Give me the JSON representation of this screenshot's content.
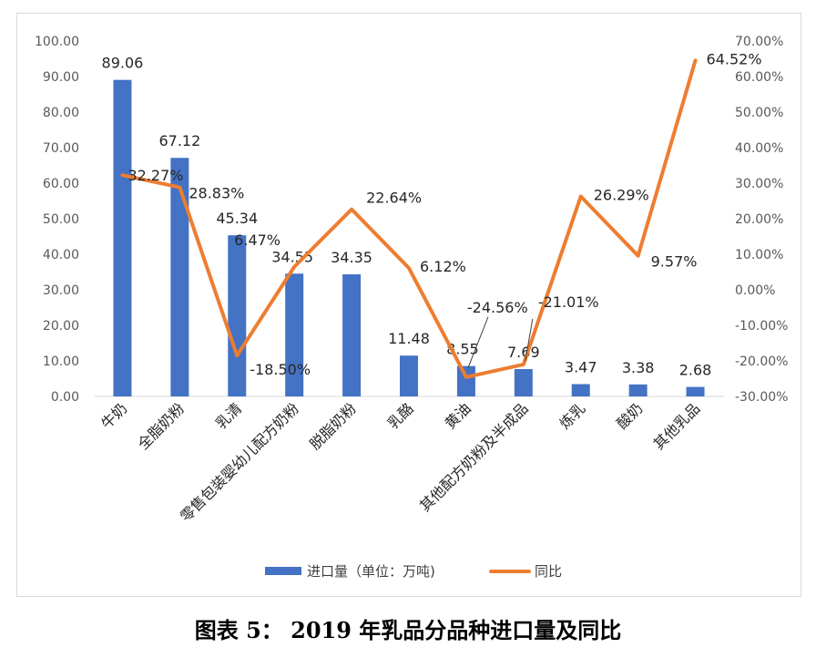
{
  "caption": "图表 5：  2019 年乳品分品种进口量及同比",
  "chart_data": {
    "type": "bar",
    "categories": [
      "牛奶",
      "全脂奶粉",
      "乳清",
      "零售包装婴幼儿配方奶粉",
      "脱脂奶粉",
      "乳酪",
      "黄油",
      "其他配方奶粉及半成品",
      "炼乳",
      "酸奶",
      "其他乳品"
    ],
    "series": [
      {
        "name": "进口量（单位：万吨)",
        "type": "bar",
        "axis": "left",
        "color": "#4472c4",
        "values": [
          89.06,
          67.12,
          45.34,
          34.55,
          34.35,
          11.48,
          8.55,
          7.69,
          3.47,
          3.38,
          2.68
        ],
        "labels": [
          "89.06",
          "67.12",
          "45.34",
          "34.55",
          "34.35",
          "11.48",
          "8.55",
          "7.69",
          "3.47",
          "3.38",
          "2.68"
        ]
      },
      {
        "name": "同比",
        "type": "line",
        "axis": "right",
        "color": "#ed7d31",
        "values": [
          32.27,
          28.83,
          -18.5,
          6.47,
          22.64,
          6.12,
          -24.56,
          -21.01,
          26.29,
          9.57,
          64.52
        ],
        "labels": [
          "32.27%",
          "28.83%",
          "-18.50%",
          "6.47%",
          "22.64%",
          "6.12%",
          "-24.56%",
          "-21.01%",
          "26.29%",
          "9.57%",
          "64.52%"
        ]
      }
    ],
    "y_left": {
      "min": 0,
      "max": 100,
      "step": 10,
      "ticks": [
        "0.00",
        "10.00",
        "20.00",
        "30.00",
        "40.00",
        "50.00",
        "60.00",
        "70.00",
        "80.00",
        "90.00",
        "100.00"
      ]
    },
    "y_right": {
      "min": -30,
      "max": 70,
      "step": 10,
      "ticks": [
        "-30.00%",
        "-20.00%",
        "-10.00%",
        "0.00%",
        "10.00%",
        "20.00%",
        "30.00%",
        "40.00%",
        "50.00%",
        "60.00%",
        "70.00%"
      ]
    },
    "grid": false,
    "legend_position": "bottom"
  }
}
